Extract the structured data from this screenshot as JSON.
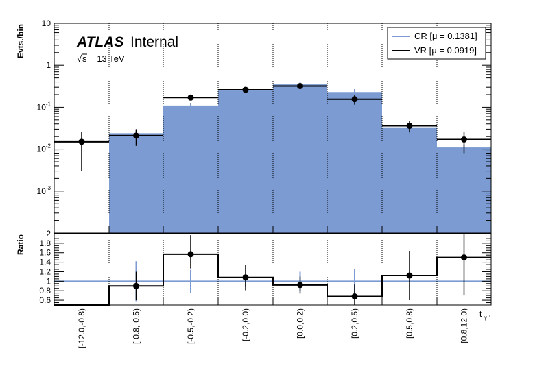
{
  "chart_data": {
    "type": "bar",
    "categories": [
      "[-12.0,-0.8)",
      "[-0.8,-0.5)",
      "[-0.5,-0.2)",
      "[-0.2,0.0)",
      "[0.0,0.2)",
      "[0.2,0.5)",
      "[0.5,0.8)",
      "[0.8,12.0)"
    ],
    "upper_panel": {
      "ylabel": "Evts./bin",
      "yscale": "log",
      "ylim": [
        0.0001,
        10
      ],
      "tick_labels": [
        {
          "value": 10,
          "base": "10",
          "exp": ""
        },
        {
          "value": 1,
          "base": "1",
          "exp": ""
        },
        {
          "value": 0.1,
          "base": "10",
          "exp": "-1"
        },
        {
          "value": 0.01,
          "base": "10",
          "exp": "-2"
        },
        {
          "value": 0.001,
          "base": "10",
          "exp": "-3"
        }
      ],
      "series": [
        {
          "name": "CR [μ = 0.1381]",
          "kind": "filled-histogram",
          "color": "#7b9bd2",
          "values": [
            null,
            0.024,
            0.11,
            0.25,
            0.35,
            0.23,
            0.032,
            0.011
          ],
          "errors": [
            null,
            0.004,
            0.014,
            0.03,
            0.04,
            0.04,
            0.004,
            0.002
          ]
        },
        {
          "name": "VR [μ = 0.0919]",
          "kind": "points-with-errors",
          "color": "#000000",
          "values": [
            0.015,
            0.021,
            0.17,
            0.26,
            0.32,
            0.155,
            0.036,
            0.017
          ],
          "err_low": [
            0.012,
            0.009,
            0.02,
            0.04,
            0.05,
            0.04,
            0.011,
            0.009
          ],
          "err_high": [
            0.011,
            0.009,
            0.02,
            0.04,
            0.05,
            0.04,
            0.011,
            0.009
          ]
        }
      ]
    },
    "lower_panel": {
      "ylabel": "Ratio",
      "ylim": [
        0.5,
        2.0
      ],
      "ticks": [
        "0.6",
        "0.8",
        "1",
        "1.2",
        "1.4",
        "1.6",
        "1.8",
        "2"
      ],
      "reference": 1.0,
      "reference_errors": [
        null,
        0.42,
        0.24,
        0.12,
        0.2,
        0.25,
        null,
        null
      ],
      "values": [
        null,
        0.9,
        1.57,
        1.08,
        0.92,
        0.68,
        1.12,
        1.5
      ],
      "err_low": [
        null,
        0.3,
        0.3,
        0.27,
        0.18,
        0.25,
        0.52,
        0.8
      ],
      "err_high": [
        null,
        0.3,
        0.4,
        0.27,
        0.18,
        0.25,
        0.52,
        0.8
      ],
      "step_values": [
        0.5,
        0.9,
        1.57,
        1.08,
        0.92,
        0.68,
        1.12,
        1.5
      ]
    },
    "xlabel_main": "t",
    "xlabel_sub": "γ 1",
    "brand": "ATLAS",
    "brand_suffix": "Internal",
    "energy_label": "s = 13 TeV",
    "energy_root": "√",
    "legend_placement": "top-right",
    "grid": "vertical dotted lines at bin edges"
  }
}
